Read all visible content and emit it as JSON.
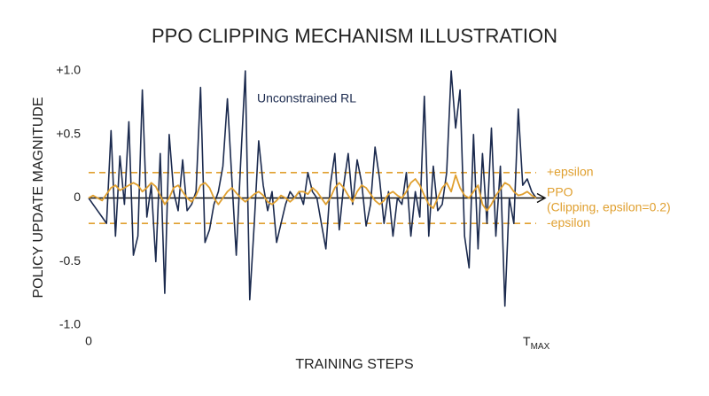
{
  "chart_data": {
    "type": "line",
    "title": "PPO CLIPPING MECHANISM ILLUSTRATION",
    "xlabel": "TRAINING STEPS",
    "ylabel": "POLICY UPDATE MAGNITUDE",
    "xlim": [
      0,
      100
    ],
    "xticks": [
      0,
      {
        "value": 100,
        "label": "T",
        "label_sub": "MAX"
      }
    ],
    "ylim": [
      -1,
      1
    ],
    "yticks": [
      {
        "value": 1,
        "label": "+1.0"
      },
      {
        "value": 0.5,
        "label": "+0.5"
      },
      0,
      {
        "value": -0.5,
        "label": "-0.5"
      },
      {
        "value": -1,
        "label": "-1.0"
      }
    ],
    "grid": false,
    "x": [
      0,
      1,
      2,
      3,
      4,
      5,
      6,
      7,
      8,
      9,
      10,
      11,
      12,
      13,
      14,
      15,
      16,
      17,
      18,
      19,
      20,
      21,
      22,
      23,
      24,
      25,
      26,
      27,
      28,
      29,
      30,
      31,
      32,
      33,
      34,
      35,
      36,
      37,
      38,
      39,
      40,
      41,
      42,
      43,
      44,
      45,
      46,
      47,
      48,
      49,
      50,
      51,
      52,
      53,
      54,
      55,
      56,
      57,
      58,
      59,
      60,
      61,
      62,
      63,
      64,
      65,
      66,
      67,
      68,
      69,
      70,
      71,
      72,
      73,
      74,
      75,
      76,
      77,
      78,
      79,
      80,
      81,
      82,
      83,
      84,
      85,
      86,
      87,
      88,
      89,
      90,
      91,
      92,
      93,
      94,
      95,
      96,
      97,
      98,
      99,
      100
    ],
    "series": [
      {
        "name": "Unconstrained RL",
        "color": "#1b2a4e",
        "values": [
          0,
          -0.05,
          -0.1,
          -0.15,
          -0.2,
          0.53,
          -0.3,
          0.33,
          -0.05,
          0.6,
          -0.45,
          -0.3,
          0.85,
          -0.15,
          0.1,
          -0.5,
          0.35,
          -0.75,
          0.5,
          0.05,
          -0.1,
          0.3,
          -0.1,
          -0.05,
          0.05,
          0.87,
          -0.35,
          -0.25,
          -0.05,
          0.05,
          0.25,
          0.78,
          0.15,
          -0.45,
          0.3,
          1.0,
          -0.8,
          -0.2,
          0.45,
          0.1,
          -0.1,
          0.05,
          -0.35,
          -0.2,
          -0.05,
          0.05,
          0,
          0.05,
          -0.05,
          0.2,
          0.05,
          0,
          -0.2,
          -0.4,
          0.1,
          0.35,
          -0.25,
          0.1,
          0.35,
          -0.05,
          0.3,
          0.12,
          -0.22,
          -0.05,
          0.4,
          0.15,
          -0.2,
          0.05,
          -0.3,
          0,
          -0.05,
          0.2,
          -0.3,
          0.05,
          -0.15,
          0.8,
          -0.3,
          0.25,
          -0.1,
          -0.05,
          0.2,
          1.0,
          0.55,
          0.85,
          -0.3,
          -0.55,
          0.5,
          -0.4,
          0.35,
          -0.2,
          0.55,
          -0.3,
          0.25,
          -0.85,
          0,
          -0.2,
          0.7,
          0.1,
          0.15,
          0.05,
          0
        ]
      },
      {
        "name": "PPO",
        "color": "#e0a030",
        "values": [
          0,
          0.02,
          0,
          -0.02,
          0.03,
          0.08,
          0.1,
          0.06,
          0.08,
          0.1,
          0.12,
          0.1,
          0.05,
          0.08,
          0.12,
          0.09,
          0.02,
          -0.05,
          0,
          0.08,
          0.1,
          0.05,
          0,
          -0.03,
          0.02,
          0.1,
          0.12,
          0.08,
          0,
          -0.05,
          0,
          0.05,
          0.08,
          0.04,
          0,
          -0.03,
          0,
          0.03,
          0.05,
          0.02,
          -0.03,
          -0.05,
          -0.02,
          0.02,
          0,
          -0.03,
          0,
          0.05,
          0.05,
          0.03,
          0.08,
          0.05,
          0,
          -0.05,
          0,
          0.08,
          0.12,
          0.08,
          0.02,
          -0.03,
          0.05,
          0.1,
          0.08,
          0.03,
          -0.02,
          -0.05,
          -0.02,
          0.03,
          0.05,
          0.02,
          0,
          0.05,
          0.12,
          0.15,
          0.1,
          0.02,
          -0.05,
          -0.08,
          0,
          0.08,
          0.12,
          0.05,
          0.18,
          0.08,
          0.02,
          0,
          0.05,
          0.1,
          -0.05,
          -0.1,
          -0.05,
          0.02,
          0.07,
          0.12,
          0.1,
          0.05,
          0.02,
          0.03,
          0.05,
          0.02,
          0
        ],
        "note_label": "(Clipping, epsilon=0.2)"
      }
    ],
    "thresholds": [
      {
        "value": 0.2,
        "label": "+epsilon"
      },
      {
        "value": -0.2,
        "label": "-epsilon"
      }
    ],
    "threshold_color": "#e0a030"
  }
}
